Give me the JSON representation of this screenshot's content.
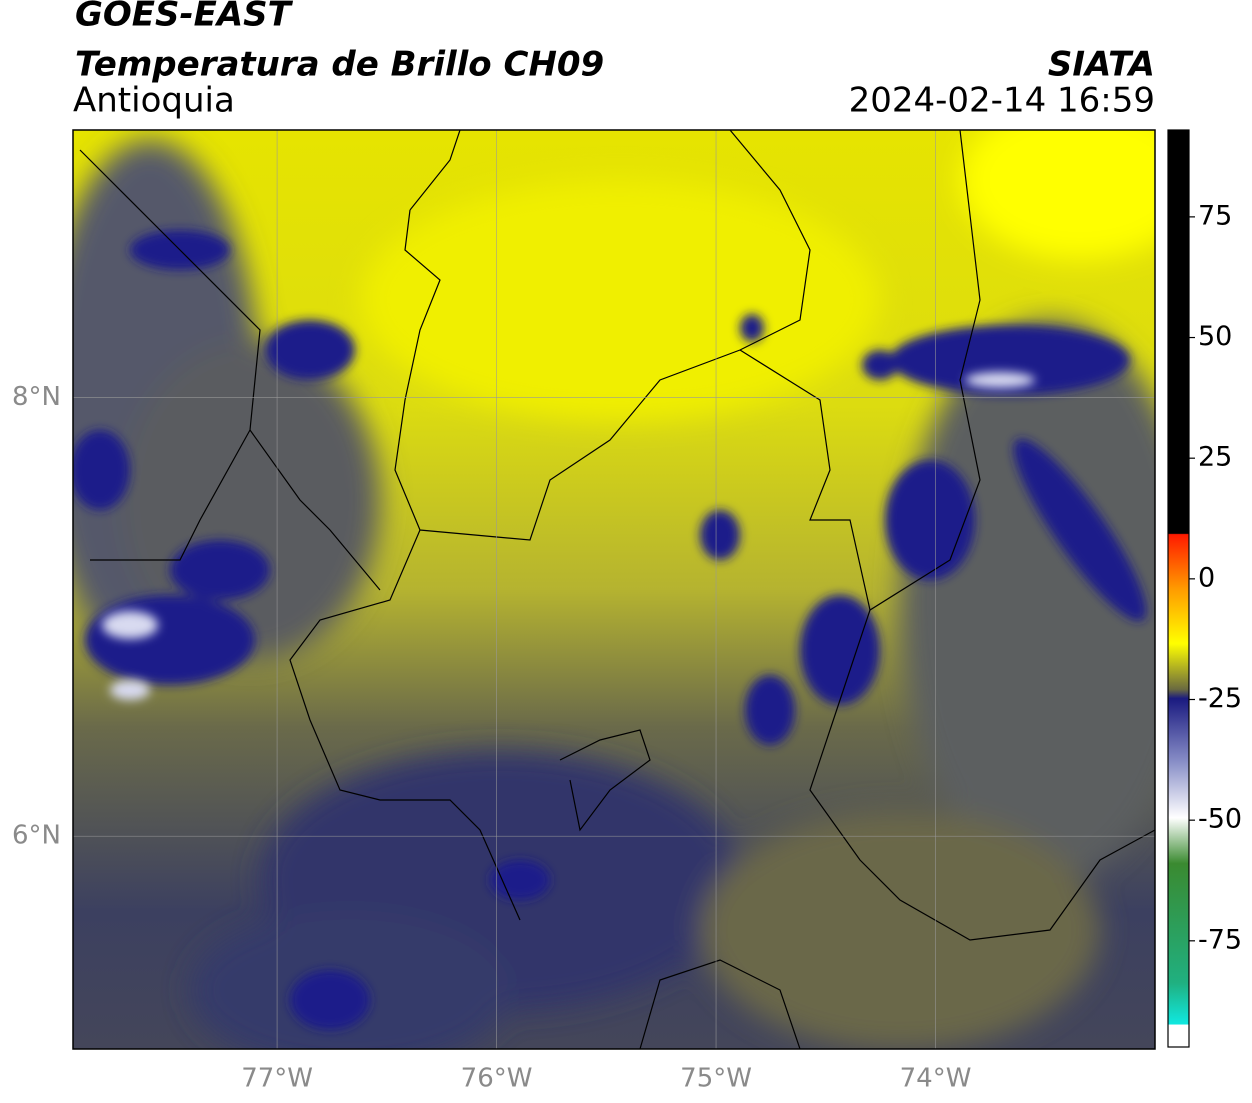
{
  "chart_data": {
    "type": "map",
    "title": "GOES-EAST",
    "subtitle": "Temperatura de Brillo CH09",
    "region": "Antioquia",
    "source": "SIATA",
    "datetime": "2024-02-14 16:59",
    "xlim": [
      -77.93,
      -73.0
    ],
    "ylim": [
      5.03,
      9.22
    ],
    "xticks": [
      {
        "value": -77,
        "label": "77°W"
      },
      {
        "value": -76,
        "label": "76°W"
      },
      {
        "value": -75,
        "label": "75°W"
      },
      {
        "value": -74,
        "label": "74°W"
      }
    ],
    "yticks": [
      {
        "value": 6,
        "label": "6°N"
      },
      {
        "value": 8,
        "label": "8°N"
      }
    ],
    "grid": true,
    "colorbar": {
      "lim": [
        -97,
        93
      ],
      "ticks": [
        75,
        50,
        25,
        0,
        -25,
        -50,
        -75
      ]
    }
  }
}
